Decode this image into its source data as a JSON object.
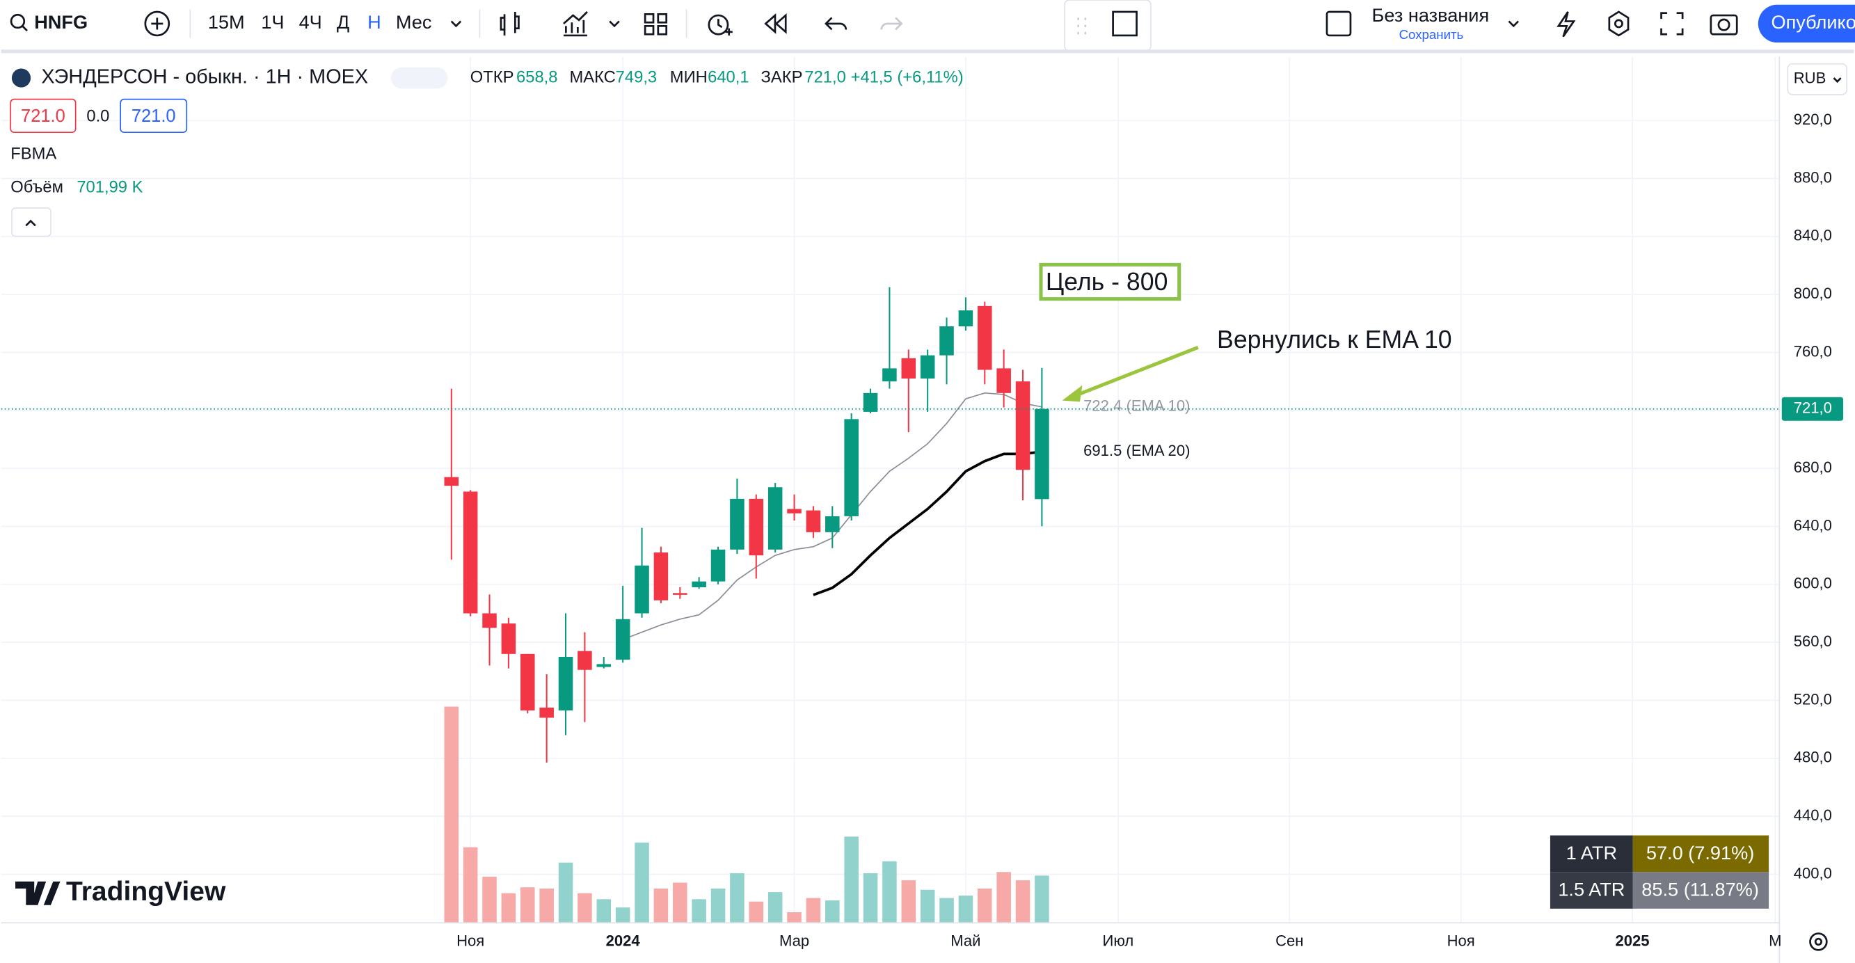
{
  "toolbar": {
    "symbol": "HNFG",
    "intervals": [
      "15M",
      "1Ч",
      "4Ч",
      "Д",
      "Н",
      "Мес"
    ],
    "layout_name": "Без названия",
    "save": "Сохранить",
    "publish": "Опублико"
  },
  "legend": {
    "title": "ХЭНДЕРСОН - обыкн. · 1Н · MOEX",
    "open_label": "ОТКР",
    "open": "658,8",
    "high_label": "МАКС",
    "high": "749,3",
    "low_label": "МИН",
    "low": "640,1",
    "close_label": "ЗАКР",
    "close": "721,0",
    "change": "+41,5 (+6,11%)",
    "sell": "721.0",
    "spread": "0.0",
    "buy": "721.0",
    "indicator": "FBMA",
    "volume_label": "Объём",
    "volume": "701,99 K"
  },
  "currency": "RUB",
  "logo": "TradingView",
  "annotations": {
    "target": "Цель - 800",
    "note": "Вернулись к EMA 10"
  },
  "atr_table": [
    [
      "1 ATR",
      "57.0 (7.91%)"
    ],
    [
      "1.5 ATR",
      "85.5 (11.87%)"
    ]
  ],
  "chart_data": {
    "type": "candlestick",
    "x": [
      0,
      1,
      2,
      3,
      4,
      5,
      6,
      7,
      8,
      9,
      10,
      11,
      12,
      13,
      14,
      15,
      16,
      17,
      18,
      19,
      20,
      21,
      22,
      23,
      24,
      25,
      26,
      27,
      28,
      29,
      30,
      31
    ],
    "open": [
      674,
      664,
      580,
      573,
      552,
      515,
      513,
      554,
      543,
      548,
      580,
      622,
      594,
      598,
      602,
      624,
      659,
      624,
      652,
      651,
      636,
      647,
      719,
      740,
      756,
      742,
      758,
      778,
      792,
      749,
      740,
      658.8
    ],
    "high": [
      735,
      665,
      593,
      577,
      552,
      538,
      580,
      567,
      550,
      599,
      639,
      626,
      598,
      605,
      626,
      673,
      662,
      670,
      662,
      654,
      654,
      718,
      735,
      805,
      762,
      762,
      784,
      798,
      795,
      762,
      748,
      749.3
    ],
    "low": [
      617,
      578,
      544,
      542,
      511,
      477,
      496,
      505,
      542,
      546,
      577,
      587,
      590,
      597,
      600,
      621,
      604,
      622,
      644,
      632,
      625,
      644,
      718,
      735,
      705,
      719,
      738,
      775,
      738,
      722,
      658,
      640.1
    ],
    "close": [
      668,
      580,
      570,
      552,
      513,
      508,
      550,
      541,
      545,
      576,
      613,
      589,
      593,
      602,
      624,
      659,
      620,
      667,
      649,
      636,
      647,
      714,
      732,
      749,
      742,
      758,
      778,
      789,
      748,
      732,
      679,
      721
    ],
    "volume": [
      3212,
      1123,
      685,
      439,
      527,
      509,
      895,
      439,
      351,
      228,
      1193,
      509,
      597,
      351,
      509,
      737,
      316,
      456,
      158,
      369,
      333,
      1281,
      737,
      913,
      632,
      491,
      369,
      404,
      509,
      755,
      632,
      701.99
    ],
    "up_color": "#089981",
    "down_color": "#f23645",
    "up_volume_color": "#92d2cc",
    "down_volume_color": "#f7a9a7",
    "series": [
      {
        "name": "EMA 10",
        "color": "#8a8d96",
        "label": "722.4 (EMA 10)",
        "values": [
          null,
          null,
          null,
          null,
          null,
          null,
          null,
          null,
          null,
          562,
          567,
          572,
          576,
          579,
          589,
          603,
          612,
          620,
          624,
          626,
          632,
          648,
          664,
          678,
          687,
          697,
          711,
          728,
          732,
          731,
          725,
          722.4
        ]
      },
      {
        "name": "EMA 20",
        "color": "#000000",
        "label": "691.5 (EMA 20)",
        "values": [
          null,
          null,
          null,
          null,
          null,
          null,
          null,
          null,
          null,
          null,
          null,
          null,
          null,
          null,
          null,
          null,
          null,
          null,
          null,
          592.7,
          597.6,
          607,
          620,
          632,
          642,
          652,
          664,
          678,
          685,
          690,
          690,
          691.5
        ]
      }
    ],
    "last_price_label": "721,0",
    "xlim": [
      -23.64,
      69.72
    ],
    "ylim": [
      366.5,
      964
    ],
    "xticks": [
      {
        "value": 1,
        "label": "Ноя"
      },
      {
        "value": 9,
        "label": "2024"
      },
      {
        "value": 18,
        "label": "Мар"
      },
      {
        "value": 27,
        "label": "Май"
      },
      {
        "value": 35,
        "label": "Июл"
      },
      {
        "value": 44,
        "label": "Сен"
      },
      {
        "value": 53,
        "label": "Ноя"
      },
      {
        "value": 62,
        "label": "2025"
      },
      {
        "value": 69.5,
        "label": "М"
      }
    ],
    "yticks": [
      {
        "value": 920,
        "label": "920,0"
      },
      {
        "value": 880,
        "label": "880,0"
      },
      {
        "value": 840,
        "label": "840,0"
      },
      {
        "value": 800,
        "label": "800,0"
      },
      {
        "value": 760,
        "label": "760,0"
      },
      {
        "value": 720,
        "label": "720,0"
      },
      {
        "value": 680,
        "label": "680,0"
      },
      {
        "value": 640,
        "label": "640,0"
      },
      {
        "value": 600,
        "label": "600,0"
      },
      {
        "value": 560,
        "label": "560,0"
      },
      {
        "value": 520,
        "label": "520,0"
      },
      {
        "value": 480,
        "label": "480,0"
      },
      {
        "value": 440,
        "label": "440,0"
      },
      {
        "value": 400,
        "label": "400,0"
      }
    ],
    "grid": true
  }
}
